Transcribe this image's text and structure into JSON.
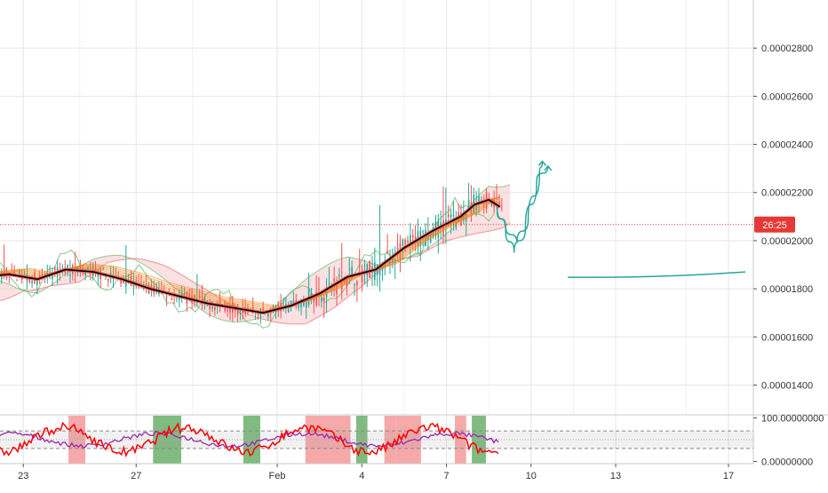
{
  "chart_data": {
    "type": "line",
    "panes": [
      {
        "name": "price",
        "y_scale": "linear",
        "y_ticks": [
          "0.00002800",
          "0.00002600",
          "0.00002400",
          "0.00002200",
          "0.00002000",
          "0.00001800",
          "0.00001600",
          "0.00001400"
        ],
        "y_tick_values": [
          2.8e-05,
          2.6e-05,
          2.4e-05,
          2.2e-05,
          2e-05,
          1.8e-05,
          1.6e-05,
          1.4e-05
        ],
        "ylim": [
          1.28e-05,
          3e-05
        ],
        "grid": true
      },
      {
        "name": "oscillator",
        "y_ticks": [
          "100.00000000",
          "0.00000000"
        ],
        "y_tick_values": [
          100,
          0
        ],
        "ylim": [
          -5,
          105
        ],
        "band": [
          30,
          70
        ],
        "grid": true
      }
    ],
    "x_tick_labels": [
      "23",
      "27",
      "Feb",
      "4",
      "7",
      "10",
      "13",
      "17"
    ],
    "x_tick_days": [
      -9,
      -5,
      0,
      3,
      6,
      9,
      12,
      16
    ],
    "current_price_label": "26:25",
    "current_price_value": 2.067e-05,
    "colors": {
      "up_candle": "#26a69a",
      "down_candle": "#ef5350",
      "moving_average": "#000000",
      "ma_ribbon": "#f57f17",
      "cloud_line_a": "#66bb6a",
      "cloud_line_b": "#ef5350",
      "cloud_fill": "#f8c8c8",
      "projection": "#26a69a",
      "price_line": "#e53935",
      "osc_line_red": "#ff0000",
      "osc_line_purple": "#9c27b0",
      "osc_bg_green": "#6aaf6a",
      "osc_bg_red": "#f49a9a"
    },
    "series": [
      {
        "kind": "moving_average",
        "x_days": [
          -11.3,
          -10.5,
          -9.5,
          -8.5,
          -7.5,
          -6.5,
          -5.5,
          -4.5,
          -3.5,
          -2.5,
          -1.5,
          -0.5,
          0.5,
          1.5,
          2.5,
          3.5,
          4.5,
          5.5,
          6.5,
          7.0,
          7.5,
          7.9
        ],
        "values": [
          1.8e-05,
          1.85e-05,
          1.86e-05,
          1.84e-05,
          1.88e-05,
          1.87e-05,
          1.84e-05,
          1.8e-05,
          1.77e-05,
          1.74e-05,
          1.72e-05,
          1.7e-05,
          1.73e-05,
          1.78e-05,
          1.85e-05,
          1.88e-05,
          1.97e-05,
          2.04e-05,
          2.1e-05,
          2.15e-05,
          2.17e-05,
          2.14e-05
        ]
      },
      {
        "kind": "projection_path",
        "x_days": [
          7.8,
          8.1,
          8.4,
          8.8,
          9.2,
          9.6
        ],
        "values": [
          2.14e-05,
          2.04e-05,
          1.95e-05,
          2.05e-05,
          2.25e-05,
          2.31e-05
        ]
      },
      {
        "kind": "projection_path",
        "x_days": [
          7.8,
          8.1,
          8.5,
          8.9,
          9.3,
          9.4
        ],
        "values": [
          2.12e-05,
          2.06e-05,
          1.99e-05,
          2.09e-05,
          2.28e-05,
          2.33e-05
        ]
      },
      {
        "kind": "trend_line",
        "x_days": [
          10.3,
          16.6
        ],
        "values": [
          1.848e-05,
          1.87e-05
        ]
      }
    ]
  }
}
